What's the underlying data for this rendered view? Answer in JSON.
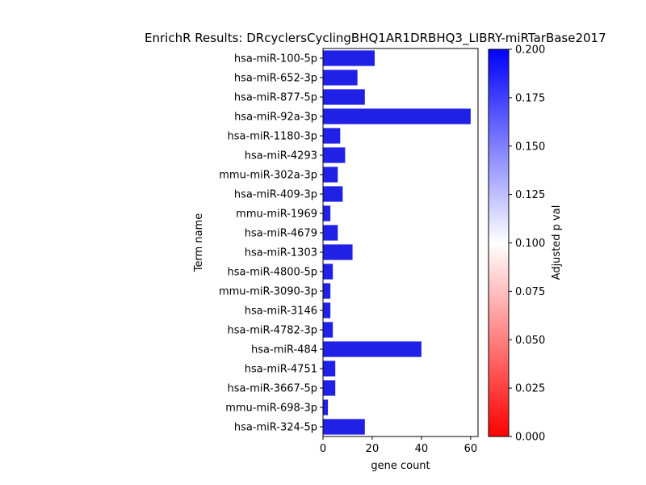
{
  "chart_data": {
    "type": "bar",
    "orientation": "horizontal",
    "title": "EnrichR Results: DRcyclersCyclingBHQ1AR1DRBHQ3_LIBRY-miRTarBase2017",
    "xlabel": "gene count",
    "ylabel": "Term name",
    "xlim": [
      0,
      63
    ],
    "xticks": [
      0,
      20,
      40,
      60
    ],
    "categories": [
      "hsa-miR-100-5p",
      "hsa-miR-652-3p",
      "hsa-miR-877-5p",
      "hsa-miR-92a-3p",
      "hsa-miR-1180-3p",
      "hsa-miR-4293",
      "mmu-miR-302a-3p",
      "hsa-miR-409-3p",
      "mmu-miR-1969",
      "hsa-miR-4679",
      "hsa-miR-1303",
      "hsa-miR-4800-5p",
      "mmu-miR-3090-3p",
      "hsa-miR-3146",
      "hsa-miR-4782-3p",
      "hsa-miR-484",
      "hsa-miR-4751",
      "hsa-miR-3667-5p",
      "mmu-miR-698-3p",
      "hsa-miR-324-5p"
    ],
    "values": [
      21,
      14,
      17,
      60,
      7,
      9,
      6,
      8,
      3,
      6,
      12,
      4,
      3,
      3,
      4,
      40,
      5,
      5,
      2,
      17
    ],
    "bar_color": "#2020e6",
    "grid": false,
    "legend": "none",
    "colorbar": {
      "label": "Adjusted p val",
      "range": [
        0.0,
        0.2
      ],
      "ticks": [
        "0.000",
        "0.025",
        "0.050",
        "0.075",
        "0.100",
        "0.125",
        "0.150",
        "0.175",
        "0.200"
      ],
      "colormap": [
        "#ff0000",
        "#ffffff",
        "#0000ff"
      ]
    }
  }
}
